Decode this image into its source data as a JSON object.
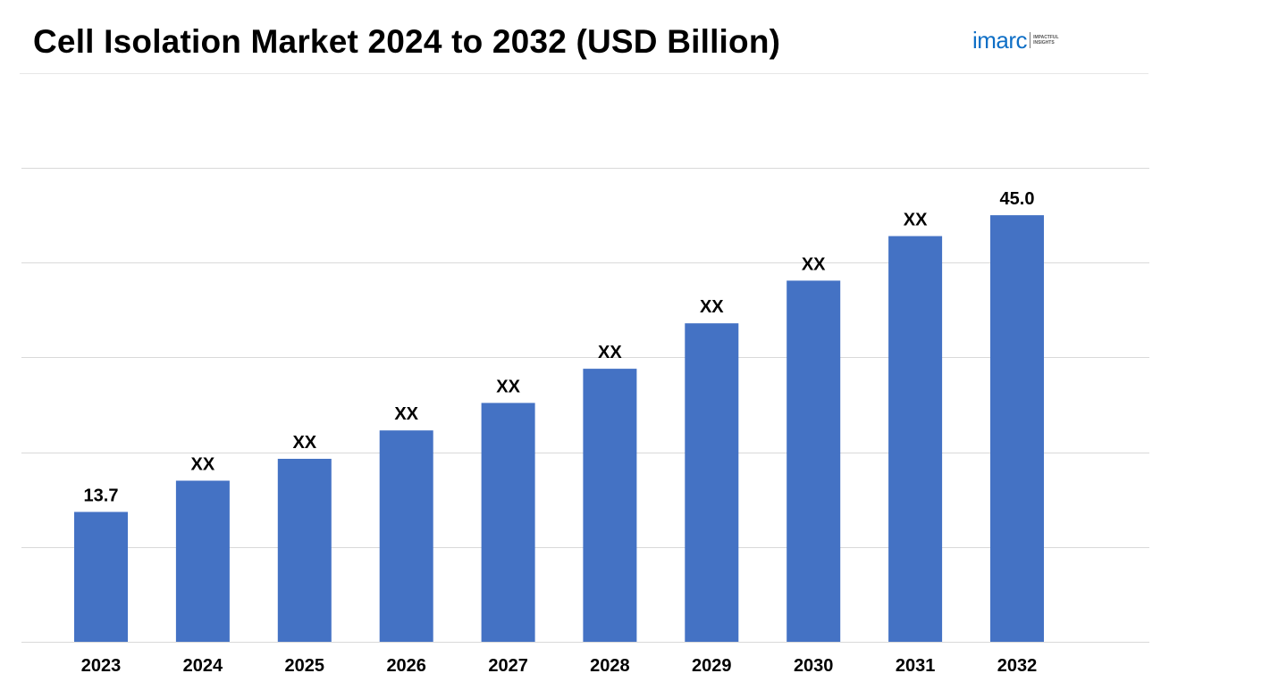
{
  "title": "Cell Isolation Market 2024 to 2032 (USD Billion)",
  "logo": {
    "word": "imarc",
    "tagline": "IMPACTFUL INSIGHTS",
    "color": "#0f6fc6"
  },
  "colors": {
    "bar": "#4472c4",
    "grid": "#d9d9d9",
    "text": "#000000"
  },
  "chart_data": {
    "type": "bar",
    "title": "Cell Isolation Market 2024 to 2032 (USD Billion)",
    "xlabel": "",
    "ylabel": "",
    "categories": [
      "2023",
      "2024",
      "2025",
      "2026",
      "2027",
      "2028",
      "2029",
      "2030",
      "2031",
      "2032"
    ],
    "values": [
      13.7,
      17.0,
      19.3,
      22.3,
      25.2,
      28.8,
      33.6,
      38.1,
      42.8,
      45.0
    ],
    "data_labels": [
      "13.7",
      "XX",
      "XX",
      "XX",
      "XX",
      "XX",
      "XX",
      "XX",
      "XX",
      "45.0"
    ],
    "ylim": [
      0,
      50
    ],
    "grid": true,
    "y_tick_labels_shown": false,
    "legend": "none"
  }
}
